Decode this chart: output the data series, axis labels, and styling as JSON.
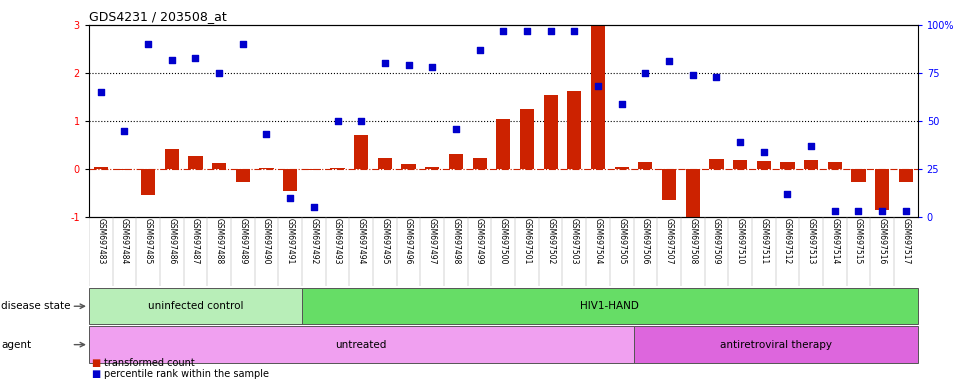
{
  "title": "GDS4231 / 203508_at",
  "samples": [
    "GSM697483",
    "GSM697484",
    "GSM697485",
    "GSM697486",
    "GSM697487",
    "GSM697488",
    "GSM697489",
    "GSM697490",
    "GSM697491",
    "GSM697492",
    "GSM697493",
    "GSM697494",
    "GSM697495",
    "GSM697496",
    "GSM697497",
    "GSM697498",
    "GSM697499",
    "GSM697500",
    "GSM697501",
    "GSM697502",
    "GSM697503",
    "GSM697504",
    "GSM697505",
    "GSM697506",
    "GSM697507",
    "GSM697508",
    "GSM697509",
    "GSM697510",
    "GSM697511",
    "GSM697512",
    "GSM697513",
    "GSM697514",
    "GSM697515",
    "GSM697516",
    "GSM697517"
  ],
  "bar_vals": [
    0.05,
    -0.02,
    -0.55,
    0.42,
    0.28,
    0.12,
    -0.28,
    0.03,
    -0.45,
    -0.02,
    0.01,
    0.7,
    0.22,
    0.1,
    0.05,
    0.32,
    0.22,
    1.05,
    1.25,
    1.55,
    1.62,
    3.0,
    0.05,
    0.15,
    -0.65,
    -1.1,
    0.2,
    0.18,
    0.17,
    0.15,
    0.18,
    0.15,
    -0.28,
    -0.85,
    -0.28
  ],
  "dot_pct": [
    65,
    45,
    90,
    82,
    83,
    75,
    90,
    43,
    10,
    5,
    50,
    50,
    80,
    79,
    78,
    46,
    87,
    97,
    97,
    97,
    97,
    68,
    59,
    75,
    81,
    74,
    73,
    39,
    34,
    12,
    37,
    3,
    3,
    3,
    3
  ],
  "bar_color": "#cc2200",
  "dot_color": "#0000cc",
  "ylim_left": [
    -1,
    3
  ],
  "ylim_right": [
    0,
    100
  ],
  "yticks_left": [
    -1,
    0,
    1,
    2,
    3
  ],
  "yticks_right": [
    0,
    25,
    50,
    75,
    100
  ],
  "ytick_labels_right": [
    "0",
    "25",
    "50",
    "75",
    "100%"
  ],
  "hline_y": [
    1,
    2
  ],
  "disease_state_groups": [
    {
      "label": "uninfected control",
      "start": 0,
      "end": 9,
      "color": "#b8eeb8"
    },
    {
      "label": "HIV1-HAND",
      "start": 9,
      "end": 35,
      "color": "#66dd66"
    }
  ],
  "agent_groups": [
    {
      "label": "untreated",
      "start": 0,
      "end": 23,
      "color": "#f0a0f0"
    },
    {
      "label": "antiretroviral therapy",
      "start": 23,
      "end": 35,
      "color": "#dd66dd"
    }
  ],
  "legend_items": [
    {
      "label": "transformed count",
      "color": "#cc2200"
    },
    {
      "label": "percentile rank within the sample",
      "color": "#0000cc"
    }
  ],
  "disease_state_label": "disease state",
  "agent_label": "agent"
}
